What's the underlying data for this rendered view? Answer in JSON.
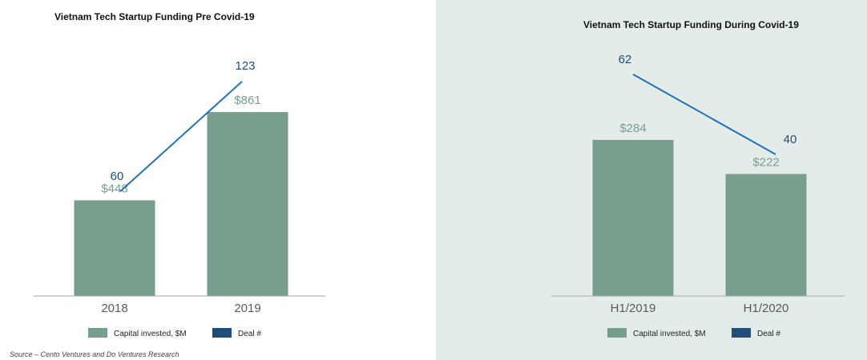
{
  "chart_data": [
    {
      "type": "bar",
      "title": "Vietnam Tech Startup Funding Pre Covid-19",
      "categories": [
        "2018",
        "2019"
      ],
      "series": [
        {
          "name": "Capital invested, $M",
          "values": [
            448,
            861
          ],
          "labels": [
            "$448",
            "$861"
          ],
          "kind": "bar",
          "color": "#779e8b"
        },
        {
          "name": "Deal #",
          "values": [
            60,
            123
          ],
          "labels": [
            "60",
            "123"
          ],
          "kind": "line",
          "color": "#1f73b7"
        }
      ],
      "legend": {
        "position": "bottom",
        "items": [
          "Capital invested, $M",
          "Deal #"
        ]
      },
      "grid": false,
      "ylim_bar": [
        0,
        1000
      ]
    },
    {
      "type": "bar",
      "title": "Vietnam Tech Startup Funding During Covid-19",
      "categories": [
        "H1/2019",
        "H1/2020"
      ],
      "series": [
        {
          "name": "Capital invested, $M",
          "values": [
            284,
            222
          ],
          "labels": [
            "$284",
            "$222"
          ],
          "kind": "bar",
          "color": "#779e8b"
        },
        {
          "name": "Deal #",
          "values": [
            62,
            40
          ],
          "labels": [
            "62",
            "40"
          ],
          "kind": "line",
          "color": "#1f73b7"
        }
      ],
      "legend": {
        "position": "bottom",
        "items": [
          "Capital invested, $M",
          "Deal #"
        ]
      },
      "grid": false,
      "ylim_bar": [
        0,
        350
      ]
    }
  ],
  "colors": {
    "bar": "#779e8b",
    "line": "#1f73b7",
    "deal_legend": "#1f4e79",
    "bar_label": "#779e8b",
    "line_label": "#1f4e79",
    "axis": "#a6a6a6",
    "tick_label": "#595959",
    "right_panel_bg": "#e4ecea"
  },
  "source": "Source – Cento Ventures and Do Ventures Research"
}
